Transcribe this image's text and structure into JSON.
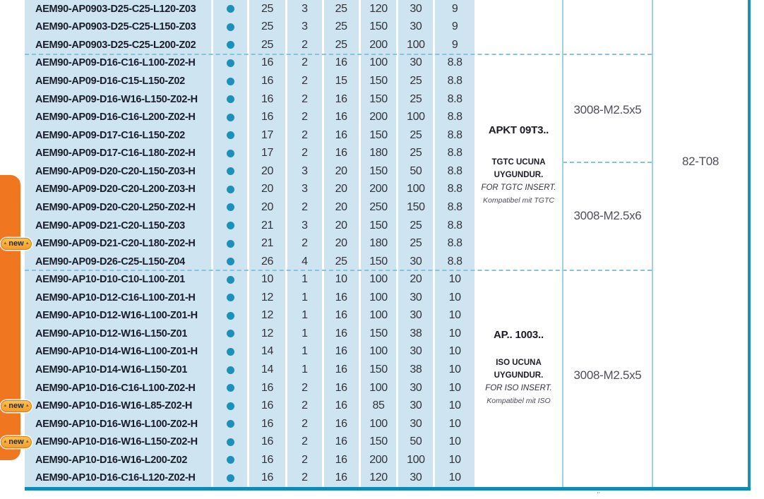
{
  "legend": {
    "new_badge_label": "new"
  },
  "table": {
    "row_area_height": 690,
    "group_row_breaks": [
      3,
      15
    ],
    "screw_row_break": 9,
    "rows": [
      {
        "code": "AEM90-AP0903-D25-C25-L120-Z03",
        "new": false,
        "stock_dot": true,
        "values": [
          "25",
          "3",
          "25",
          "120",
          "30",
          "9"
        ]
      },
      {
        "code": "AEM90-AP0903-D25-C25-L150-Z03",
        "new": false,
        "stock_dot": true,
        "values": [
          "25",
          "3",
          "25",
          "150",
          "30",
          "9"
        ]
      },
      {
        "code": "AEM90-AP0903-D25-C25-L200-Z02",
        "new": false,
        "stock_dot": true,
        "values": [
          "25",
          "2",
          "25",
          "200",
          "100",
          "9"
        ]
      },
      {
        "code": "AEM90-AP09-D16-C16-L100-Z02-H",
        "new": false,
        "stock_dot": true,
        "values": [
          "16",
          "2",
          "16",
          "100",
          "30",
          "8.8"
        ]
      },
      {
        "code": "AEM90-AP09-D16-C15-L150-Z02",
        "new": false,
        "stock_dot": true,
        "values": [
          "16",
          "2",
          "15",
          "150",
          "25",
          "8.8"
        ]
      },
      {
        "code": "AEM90-AP09-D16-W16-L150-Z02-H",
        "new": false,
        "stock_dot": true,
        "values": [
          "16",
          "2",
          "16",
          "150",
          "25",
          "8.8"
        ]
      },
      {
        "code": "AEM90-AP09-D16-C16-L200-Z02-H",
        "new": false,
        "stock_dot": true,
        "values": [
          "16",
          "2",
          "16",
          "200",
          "100",
          "8.8"
        ]
      },
      {
        "code": "AEM90-AP09-D17-C16-L150-Z02",
        "new": false,
        "stock_dot": true,
        "values": [
          "17",
          "2",
          "16",
          "150",
          "25",
          "8.8"
        ]
      },
      {
        "code": "AEM90-AP09-D17-C16-L180-Z02-H",
        "new": false,
        "stock_dot": true,
        "values": [
          "17",
          "2",
          "16",
          "180",
          "25",
          "8.8"
        ]
      },
      {
        "code": "AEM90-AP09-D20-C20-L150-Z03-H",
        "new": false,
        "stock_dot": true,
        "values": [
          "20",
          "3",
          "20",
          "150",
          "50",
          "8.8"
        ]
      },
      {
        "code": "AEM90-AP09-D20-C20-L200-Z03-H",
        "new": false,
        "stock_dot": true,
        "values": [
          "20",
          "3",
          "20",
          "200",
          "100",
          "8.8"
        ]
      },
      {
        "code": "AEM90-AP09-D20-C20-L250-Z02-H",
        "new": false,
        "stock_dot": true,
        "values": [
          "20",
          "2",
          "20",
          "250",
          "150",
          "8.8"
        ]
      },
      {
        "code": "AEM90-AP09-D21-C20-L150-Z03",
        "new": false,
        "stock_dot": true,
        "values": [
          "21",
          "3",
          "20",
          "150",
          "25",
          "8.8"
        ]
      },
      {
        "code": "AEM90-AP09-D21-C20-L180-Z02-H",
        "new": true,
        "stock_dot": true,
        "values": [
          "21",
          "2",
          "20",
          "180",
          "25",
          "8.8"
        ]
      },
      {
        "code": "AEM90-AP09-D26-C25-L150-Z04",
        "new": false,
        "stock_dot": true,
        "values": [
          "26",
          "4",
          "25",
          "150",
          "30",
          "8.8"
        ]
      },
      {
        "code": "AEM90-AP10-D10-C10-L100-Z01",
        "new": false,
        "stock_dot": true,
        "values": [
          "10",
          "1",
          "10",
          "100",
          "20",
          "10"
        ]
      },
      {
        "code": "AEM90-AP10-D12-C16-L100-Z01-H",
        "new": false,
        "stock_dot": true,
        "values": [
          "12",
          "1",
          "16",
          "100",
          "30",
          "10"
        ]
      },
      {
        "code": "AEM90-AP10-D12-W16-L100-Z01-H",
        "new": false,
        "stock_dot": true,
        "values": [
          "12",
          "1",
          "16",
          "100",
          "30",
          "10"
        ]
      },
      {
        "code": "AEM90-AP10-D12-W16-L150-Z01",
        "new": false,
        "stock_dot": true,
        "values": [
          "12",
          "1",
          "16",
          "150",
          "38",
          "10"
        ]
      },
      {
        "code": "AEM90-AP10-D14-W16-L100-Z01-H",
        "new": false,
        "stock_dot": true,
        "values": [
          "14",
          "1",
          "16",
          "100",
          "30",
          "10"
        ]
      },
      {
        "code": "AEM90-AP10-D14-W16-L150-Z01",
        "new": false,
        "stock_dot": true,
        "values": [
          "14",
          "1",
          "16",
          "150",
          "38",
          "10"
        ]
      },
      {
        "code": "AEM90-AP10-D16-C16-L100-Z02-H",
        "new": false,
        "stock_dot": true,
        "values": [
          "16",
          "2",
          "16",
          "100",
          "30",
          "10"
        ]
      },
      {
        "code": "AEM90-AP10-D16-W16-L85-Z02-H",
        "new": true,
        "stock_dot": true,
        "values": [
          "16",
          "2",
          "16",
          "85",
          "30",
          "10"
        ]
      },
      {
        "code": "AEM90-AP10-D16-W16-L100-Z02-H",
        "new": false,
        "stock_dot": true,
        "values": [
          "16",
          "2",
          "16",
          "100",
          "30",
          "10"
        ]
      },
      {
        "code": "AEM90-AP10-D16-W16-L150-Z02-H",
        "new": true,
        "stock_dot": true,
        "values": [
          "16",
          "2",
          "16",
          "150",
          "50",
          "10"
        ]
      },
      {
        "code": "AEM90-AP10-D16-W16-L200-Z02",
        "new": false,
        "stock_dot": true,
        "values": [
          "16",
          "2",
          "16",
          "200",
          "100",
          "10"
        ]
      },
      {
        "code": "AEM90-AP10-D16-C16-L120-Z02-H",
        "new": false,
        "stock_dot": true,
        "values": [
          "16",
          "2",
          "16",
          "120",
          "30",
          "10"
        ]
      }
    ],
    "groups": [
      {
        "insert_title": "APKT 09T3..",
        "insert_lines": [
          "TGTC UCUNA",
          "UYGUNDUR.",
          "FOR TGTC INSERT.",
          "Kompatibel mit TGTC"
        ],
        "screws": [
          "3008-M2.5x5",
          "3008-M2.5x6"
        ]
      },
      {
        "insert_title": "AP.. 1003..",
        "insert_lines": [
          "ISO UCUNA",
          "UYGUNDUR.",
          "FOR ISO INSERT.",
          "Kompatibel mit ISO"
        ],
        "screws": [
          "3008-M2.5x5"
        ]
      }
    ],
    "key_code": "82-T08",
    "cutoff_mark": "¨"
  },
  "colors": {
    "row_bg": "#cee4f0",
    "stock_dot": "#1a90bb",
    "table_border": "#128ab8",
    "dashed_divider": "#85c4de",
    "orange_tab": "#f0761f",
    "new_badge": "#f9b23c",
    "code_text": "#191d2b"
  }
}
